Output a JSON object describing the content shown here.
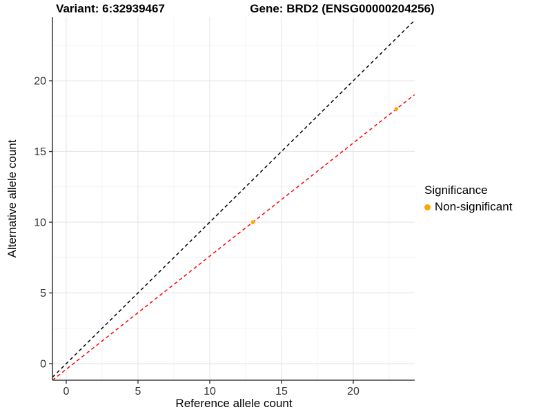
{
  "chart_data": {
    "type": "scatter",
    "title_left": "Variant: 6:32939467",
    "title_right": "Gene: BRD2 (ENSG00000204256)",
    "xlabel": "Reference allele count",
    "ylabel": "Alternative allele count",
    "xlim": [
      -0.96,
      24.28
    ],
    "ylim": [
      -1.17,
      24.49
    ],
    "x_ticks": [
      0,
      5,
      10,
      15,
      20
    ],
    "y_ticks": [
      0,
      5,
      10,
      15,
      20
    ],
    "x_minor_ticks": [
      2.5,
      7.5,
      12.5,
      17.5,
      22.5
    ],
    "y_minor_ticks": [
      2.5,
      7.5,
      12.5,
      17.5,
      22.5
    ],
    "grid": true,
    "point_color": "#FFA500",
    "points": [
      {
        "x": 13,
        "y": 10,
        "series": "Non-significant"
      },
      {
        "x": 23,
        "y": 18,
        "series": "Non-significant"
      }
    ],
    "lines": [
      {
        "name": "identity-line",
        "slope": 1,
        "intercept": 0,
        "color": "#000000",
        "style": "dashed"
      },
      {
        "name": "fit-line",
        "slope": 0.8,
        "intercept": -0.4,
        "color": "#FF0000",
        "style": "dashed"
      }
    ],
    "legend": {
      "position": "right",
      "title": "Significance",
      "items": [
        {
          "label": "Non-significant",
          "color": "#FFA500"
        }
      ]
    }
  }
}
